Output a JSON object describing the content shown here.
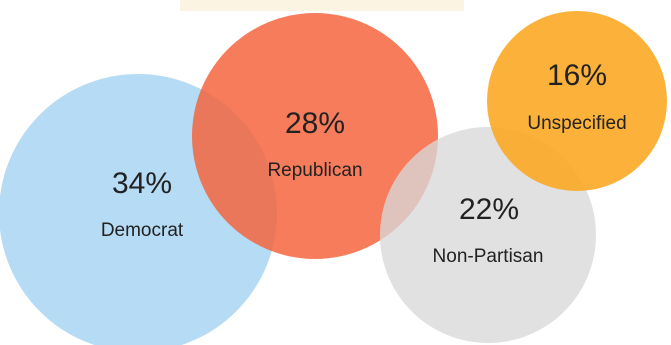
{
  "chart_data": {
    "type": "bubble",
    "unit": "%",
    "series": [
      {
        "label": "Democrat",
        "value": 34,
        "color": "#a9d5f2"
      },
      {
        "label": "Republican",
        "value": 28,
        "color": "#f4653f"
      },
      {
        "label": "Non-Partisan",
        "value": 22,
        "color": "#d9d9d9"
      },
      {
        "label": "Unspecified",
        "value": 16,
        "color": "#fba825"
      }
    ]
  }
}
